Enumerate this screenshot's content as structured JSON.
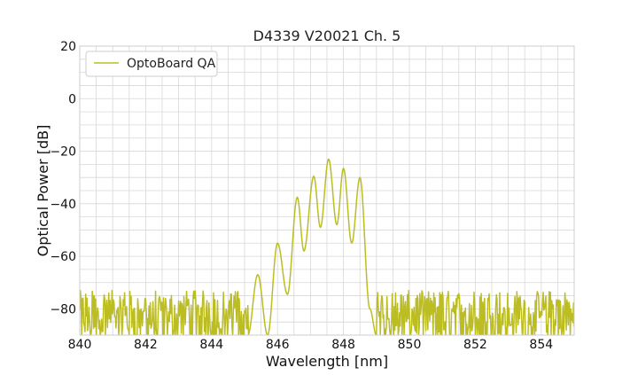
{
  "chart_data": {
    "type": "line",
    "title": "D4339 V20021 Ch. 5",
    "xlabel": "Wavelength [nm]",
    "ylabel": "Optical Power [dB]",
    "xlim": [
      840,
      855
    ],
    "ylim": [
      -90,
      20
    ],
    "x_ticks": [
      840,
      842,
      844,
      846,
      848,
      850,
      852,
      854
    ],
    "y_ticks": [
      20,
      0,
      -20,
      -40,
      -60,
      -80
    ],
    "grid": true,
    "legend_position": "top-left",
    "series": [
      {
        "name": "OptoBoard QA",
        "color": "#bcbd22",
        "noise_floor_range": [
          -90,
          -73
        ],
        "peaks": [
          {
            "x": 845.4,
            "y": -67
          },
          {
            "x": 846.0,
            "y": -55
          },
          {
            "x": 846.6,
            "y": -37.5
          },
          {
            "x": 847.1,
            "y": -29.5
          },
          {
            "x": 847.55,
            "y": -23
          },
          {
            "x": 848.0,
            "y": -26.5
          },
          {
            "x": 848.5,
            "y": -30
          }
        ],
        "dips": [
          {
            "x": 845.7,
            "y": -90
          },
          {
            "x": 846.3,
            "y": -74.5
          },
          {
            "x": 846.8,
            "y": -58
          },
          {
            "x": 847.3,
            "y": -49
          },
          {
            "x": 847.8,
            "y": -48
          },
          {
            "x": 848.25,
            "y": -55
          },
          {
            "x": 848.8,
            "y": -80
          }
        ]
      }
    ]
  }
}
